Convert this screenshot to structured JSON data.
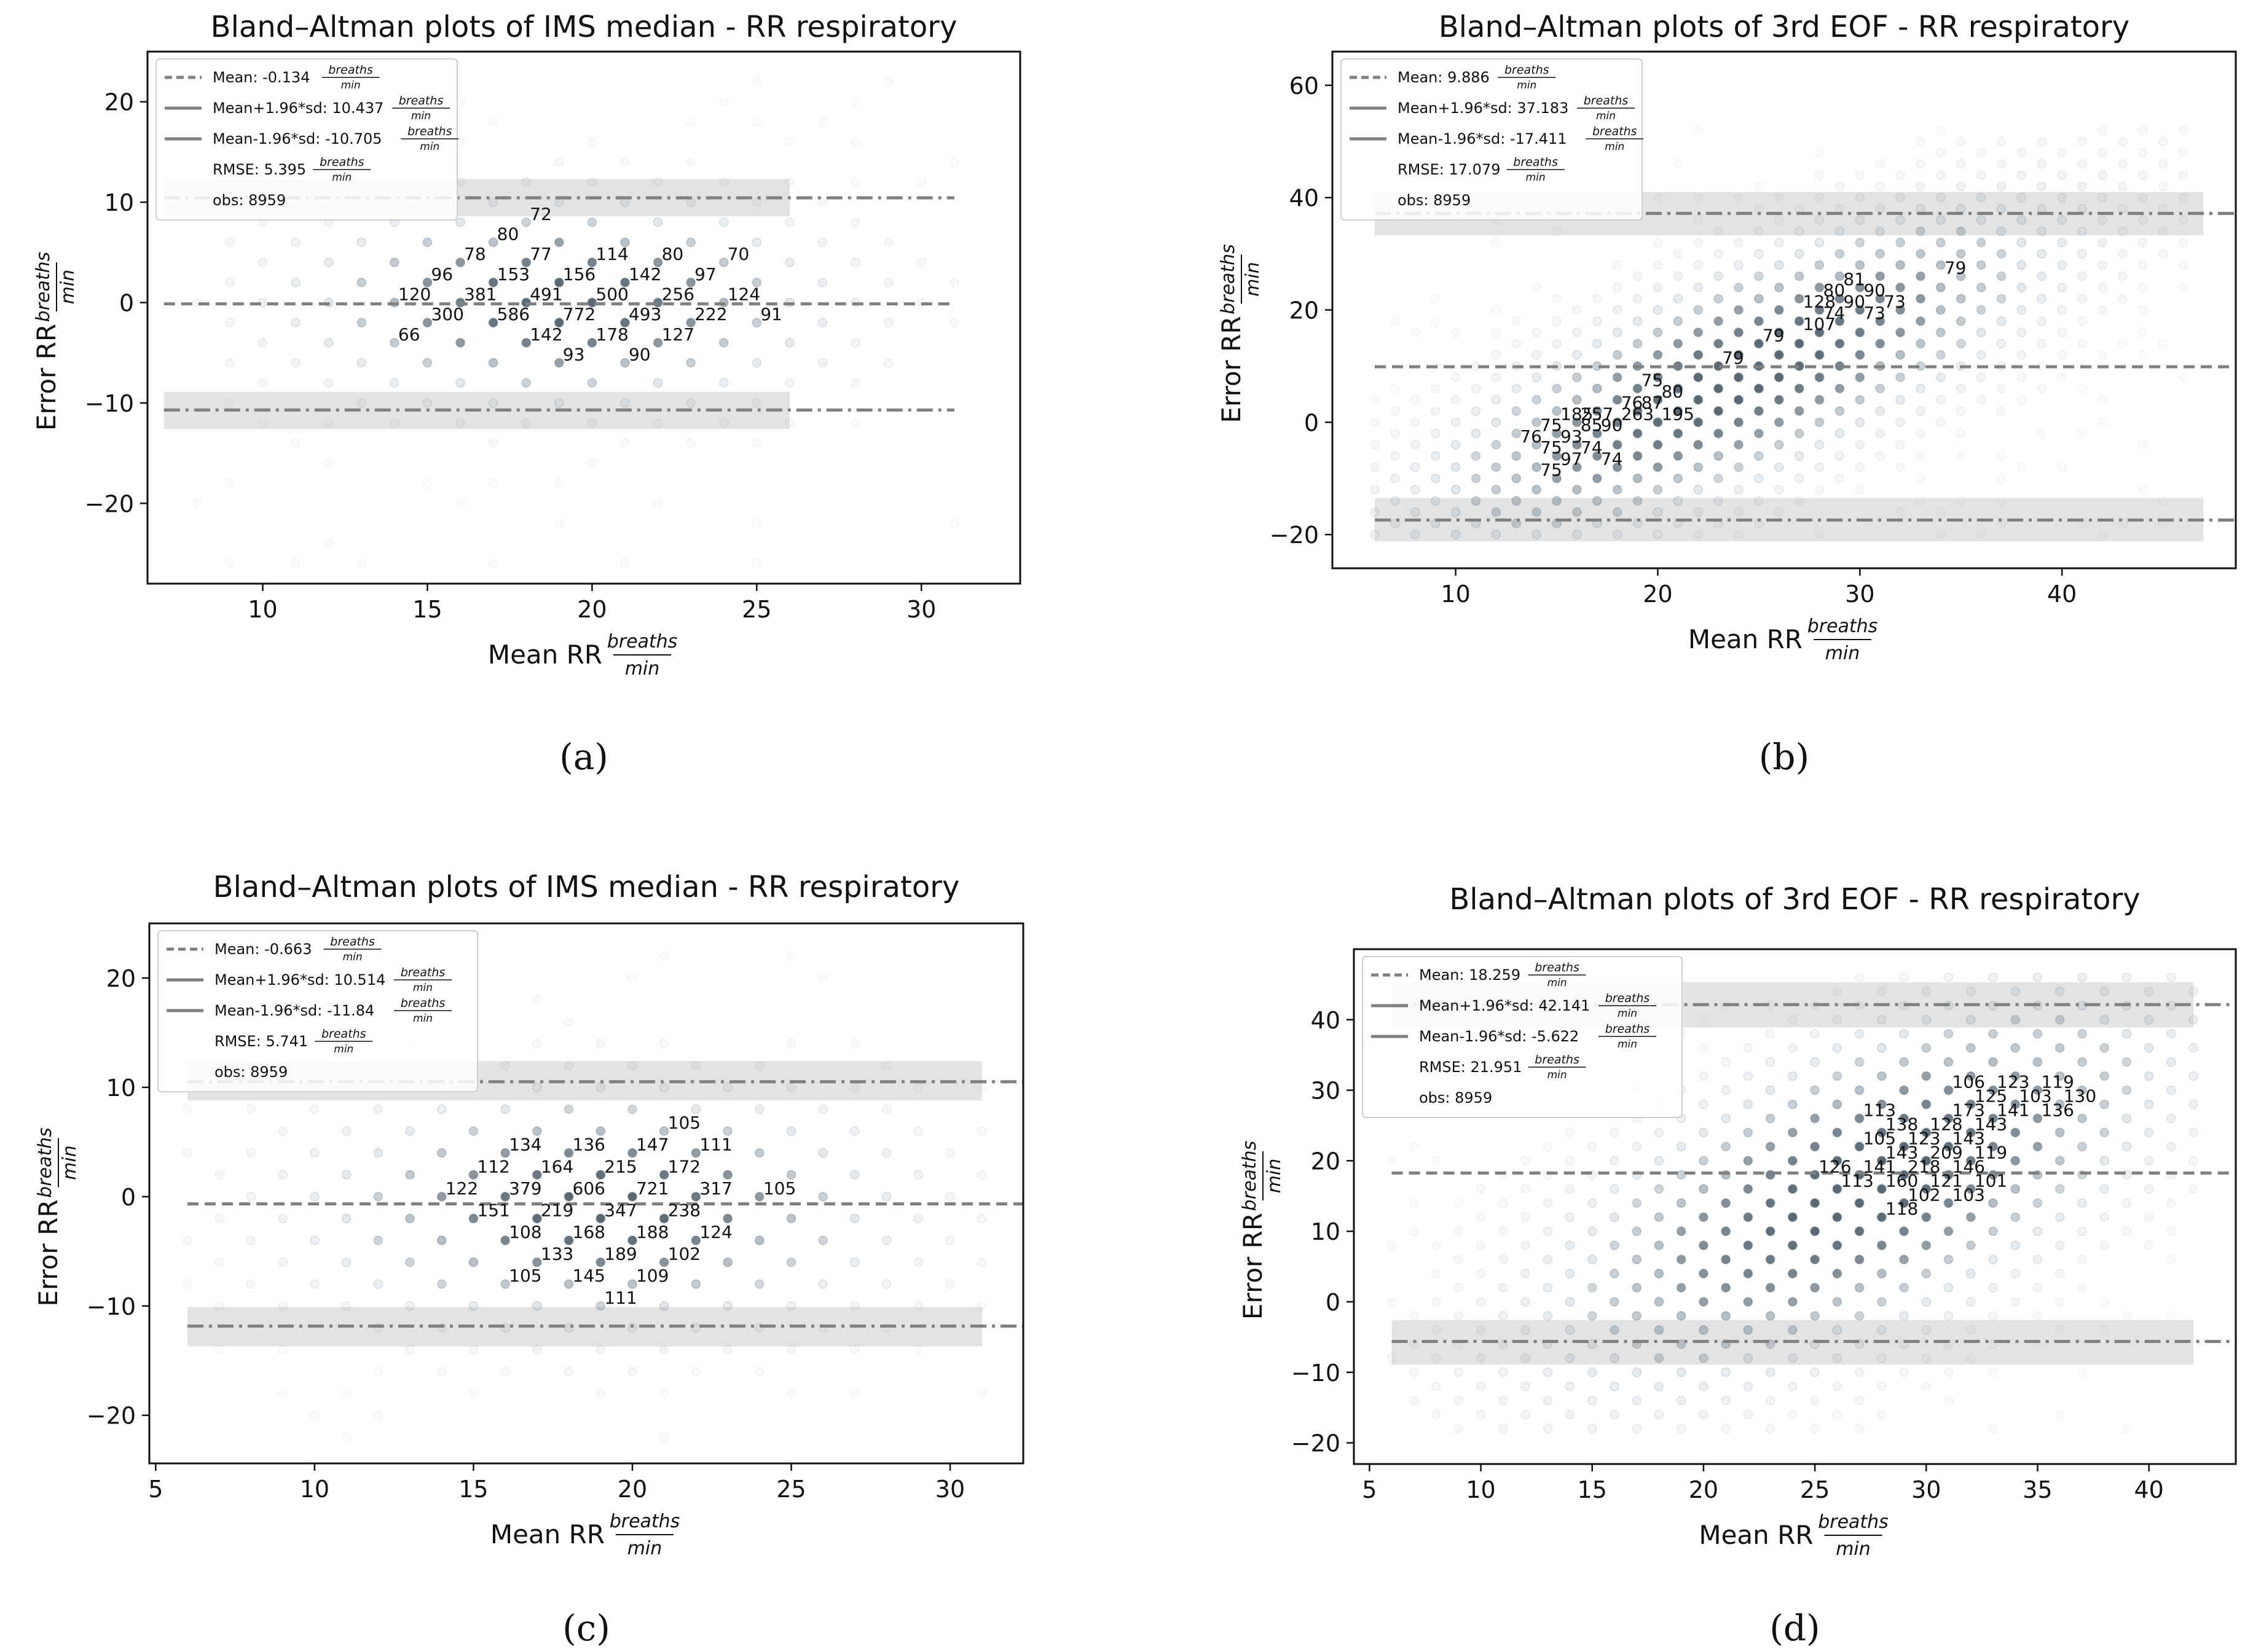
{
  "figure": {
    "panel_labels": [
      "(a)",
      "(b)",
      "(c)",
      "(d)"
    ],
    "xlabel_main": "Mean RR",
    "ylabel_main": "Error RR",
    "unit_num": "breaths",
    "unit_den": "min"
  },
  "chart_data": [
    {
      "type": "scatter",
      "title": "Bland–Altman plots of IMS median - RR respiratory",
      "xlabel": "Mean RR breaths/min",
      "ylabel": "Error RR breaths/min",
      "xlim": [
        6.5,
        33
      ],
      "ylim": [
        -28,
        25
      ],
      "xticks": [
        10,
        15,
        20,
        25,
        30
      ],
      "yticks": [
        -20,
        -10,
        0,
        10,
        20
      ],
      "mean": -0.134,
      "upper_loa": 10.437,
      "lower_loa": -10.705,
      "line_xrange": [
        7,
        31
      ],
      "band_xrange": [
        7,
        26
      ],
      "upper_band": [
        8.6,
        12.3
      ],
      "lower_band": [
        -8.9,
        -12.6
      ],
      "legend": {
        "mean": "Mean: -0.134",
        "upper": "Mean+1.96*sd: 10.437",
        "lower": "Mean-1.96*sd: -10.705",
        "rmse": "RMSE: 5.395",
        "obs": "obs: 8959"
      },
      "point_range": {
        "x": [
          8,
          31
        ],
        "y": [
          -26,
          22
        ]
      },
      "point_center": [
        19,
        0
      ],
      "point_spread": [
        4.5,
        5.5
      ],
      "point_slope": 0,
      "annotations": [
        {
          "x": 18,
          "y": 8,
          "label": "72"
        },
        {
          "x": 17,
          "y": 6,
          "label": "80"
        },
        {
          "x": 16,
          "y": 4,
          "label": "78"
        },
        {
          "x": 18,
          "y": 4,
          "label": "77"
        },
        {
          "x": 20,
          "y": 4,
          "label": "114"
        },
        {
          "x": 22,
          "y": 4,
          "label": "80"
        },
        {
          "x": 24,
          "y": 4,
          "label": "70"
        },
        {
          "x": 15,
          "y": 2,
          "label": "96"
        },
        {
          "x": 17,
          "y": 2,
          "label": "153"
        },
        {
          "x": 19,
          "y": 2,
          "label": "156"
        },
        {
          "x": 21,
          "y": 2,
          "label": "142"
        },
        {
          "x": 23,
          "y": 2,
          "label": "97"
        },
        {
          "x": 14,
          "y": 0,
          "label": "120"
        },
        {
          "x": 16,
          "y": 0,
          "label": "381"
        },
        {
          "x": 18,
          "y": 0,
          "label": "491"
        },
        {
          "x": 20,
          "y": 0,
          "label": "500"
        },
        {
          "x": 22,
          "y": 0,
          "label": "256"
        },
        {
          "x": 24,
          "y": 0,
          "label": "124"
        },
        {
          "x": 15,
          "y": -2,
          "label": "300"
        },
        {
          "x": 17,
          "y": -2,
          "label": "586"
        },
        {
          "x": 19,
          "y": -2,
          "label": "772"
        },
        {
          "x": 21,
          "y": -2,
          "label": "493"
        },
        {
          "x": 23,
          "y": -2,
          "label": "222"
        },
        {
          "x": 25,
          "y": -2,
          "label": "91"
        },
        {
          "x": 14,
          "y": -4,
          "label": "66"
        },
        {
          "x": 18,
          "y": -4,
          "label": "142"
        },
        {
          "x": 20,
          "y": -4,
          "label": "178"
        },
        {
          "x": 22,
          "y": -4,
          "label": "127"
        },
        {
          "x": 21,
          "y": -6,
          "label": "90"
        },
        {
          "x": 19,
          "y": -6,
          "label": "93"
        }
      ]
    },
    {
      "type": "scatter",
      "title": "Bland–Altman plots of 3rd EOF - RR respiratory",
      "xlabel": "Mean RR breaths/min",
      "ylabel": "Error RR breaths/min",
      "xlim": [
        3.9,
        48.6
      ],
      "ylim": [
        -26,
        66
      ],
      "xticks": [
        10,
        20,
        30,
        40
      ],
      "yticks": [
        -20,
        0,
        20,
        40,
        60
      ],
      "mean": 9.886,
      "upper_loa": 37.183,
      "lower_loa": -17.411,
      "line_xrange": [
        6,
        48.6
      ],
      "band_xrange": [
        6,
        47
      ],
      "upper_band": [
        33.3,
        41.0
      ],
      "lower_band": [
        -13.5,
        -21.2
      ],
      "legend": {
        "mean": "Mean: 9.886",
        "upper": "Mean+1.96*sd: 37.183",
        "lower": "Mean-1.96*sd: -17.411",
        "rmse": "RMSE: 17.079",
        "obs": "obs: 8959"
      },
      "point_range": {
        "x": [
          6,
          46
        ],
        "y": [
          -20,
          52
        ]
      },
      "point_center": [
        24,
        8
      ],
      "point_spread": [
        9,
        11
      ],
      "point_slope": 1.5,
      "annotations": [
        {
          "x": 34,
          "y": 26,
          "label": "79"
        },
        {
          "x": 29,
          "y": 24,
          "label": "81"
        },
        {
          "x": 28,
          "y": 22,
          "label": "80"
        },
        {
          "x": 30,
          "y": 22,
          "label": "90"
        },
        {
          "x": 27,
          "y": 20,
          "label": "128"
        },
        {
          "x": 29,
          "y": 20,
          "label": "90"
        },
        {
          "x": 31,
          "y": 20,
          "label": "73"
        },
        {
          "x": 28,
          "y": 18,
          "label": "74"
        },
        {
          "x": 30,
          "y": 18,
          "label": "73"
        },
        {
          "x": 27,
          "y": 16,
          "label": "107"
        },
        {
          "x": 25,
          "y": 14,
          "label": "79"
        },
        {
          "x": 23,
          "y": 10,
          "label": "79"
        },
        {
          "x": 19,
          "y": 6,
          "label": "75"
        },
        {
          "x": 20,
          "y": 4,
          "label": "80"
        },
        {
          "x": 18,
          "y": 2,
          "label": "76"
        },
        {
          "x": 19,
          "y": 2,
          "label": "87"
        },
        {
          "x": 15,
          "y": 0,
          "label": "185"
        },
        {
          "x": 16,
          "y": 0,
          "label": "257"
        },
        {
          "x": 18,
          "y": 0,
          "label": "263"
        },
        {
          "x": 20,
          "y": 0,
          "label": "195"
        },
        {
          "x": 14,
          "y": -2,
          "label": "75"
        },
        {
          "x": 16,
          "y": -2,
          "label": "85"
        },
        {
          "x": 17,
          "y": -2,
          "label": "90"
        },
        {
          "x": 13,
          "y": -4,
          "label": "76"
        },
        {
          "x": 15,
          "y": -4,
          "label": "93"
        },
        {
          "x": 14,
          "y": -6,
          "label": "75"
        },
        {
          "x": 16,
          "y": -6,
          "label": "74"
        },
        {
          "x": 15,
          "y": -8,
          "label": "97"
        },
        {
          "x": 17,
          "y": -8,
          "label": "74"
        },
        {
          "x": 14,
          "y": -10,
          "label": "75"
        }
      ]
    },
    {
      "type": "scatter",
      "title": "Bland–Altman plots of IMS median - RR respiratory",
      "xlabel": "Mean RR breaths/min",
      "ylabel": "Error RR breaths/min",
      "xlim": [
        4.8,
        32.3
      ],
      "ylim": [
        -24.4,
        25
      ],
      "xticks": [
        5,
        10,
        15,
        20,
        25,
        30
      ],
      "yticks": [
        -20,
        -10,
        0,
        10,
        20
      ],
      "mean": -0.663,
      "upper_loa": 10.514,
      "lower_loa": -11.84,
      "line_xrange": [
        6,
        32.3
      ],
      "band_xrange": [
        6,
        31
      ],
      "upper_band": [
        8.8,
        12.4
      ],
      "lower_band": [
        -10.1,
        -13.7
      ],
      "legend": {
        "mean": "Mean: -0.663",
        "upper": "Mean+1.96*sd: 10.514",
        "lower": "Mean-1.96*sd: -11.84",
        "rmse": "RMSE: 5.741",
        "obs": "obs: 8959"
      },
      "point_range": {
        "x": [
          6,
          31
        ],
        "y": [
          -22,
          22
        ]
      },
      "point_center": [
        19,
        -1
      ],
      "point_spread": [
        5,
        6
      ],
      "point_slope": 0,
      "annotations": [
        {
          "x": 21,
          "y": 6,
          "label": "105"
        },
        {
          "x": 16,
          "y": 4,
          "label": "134"
        },
        {
          "x": 18,
          "y": 4,
          "label": "136"
        },
        {
          "x": 20,
          "y": 4,
          "label": "147"
        },
        {
          "x": 22,
          "y": 4,
          "label": "111"
        },
        {
          "x": 15,
          "y": 2,
          "label": "112"
        },
        {
          "x": 17,
          "y": 2,
          "label": "164"
        },
        {
          "x": 19,
          "y": 2,
          "label": "215"
        },
        {
          "x": 21,
          "y": 2,
          "label": "172"
        },
        {
          "x": 14,
          "y": 0,
          "label": "122"
        },
        {
          "x": 16,
          "y": 0,
          "label": "379"
        },
        {
          "x": 18,
          "y": 0,
          "label": "606"
        },
        {
          "x": 20,
          "y": 0,
          "label": "721"
        },
        {
          "x": 22,
          "y": 0,
          "label": "317"
        },
        {
          "x": 24,
          "y": 0,
          "label": "105"
        },
        {
          "x": 15,
          "y": -2,
          "label": "151"
        },
        {
          "x": 17,
          "y": -2,
          "label": "219"
        },
        {
          "x": 19,
          "y": -2,
          "label": "347"
        },
        {
          "x": 21,
          "y": -2,
          "label": "238"
        },
        {
          "x": 16,
          "y": -4,
          "label": "108"
        },
        {
          "x": 18,
          "y": -4,
          "label": "168"
        },
        {
          "x": 20,
          "y": -4,
          "label": "188"
        },
        {
          "x": 22,
          "y": -4,
          "label": "124"
        },
        {
          "x": 17,
          "y": -6,
          "label": "133"
        },
        {
          "x": 19,
          "y": -6,
          "label": "189"
        },
        {
          "x": 21,
          "y": -6,
          "label": "102"
        },
        {
          "x": 16,
          "y": -8,
          "label": "105"
        },
        {
          "x": 18,
          "y": -8,
          "label": "145"
        },
        {
          "x": 20,
          "y": -8,
          "label": "109"
        },
        {
          "x": 19,
          "y": -10,
          "label": "111"
        }
      ]
    },
    {
      "type": "scatter",
      "title": "Bland–Altman plots of 3rd EOF - RR respiratory",
      "xlabel": "Mean RR breaths/min",
      "ylabel": "Error RR breaths/min",
      "xlim": [
        4.3,
        43.9
      ],
      "ylim": [
        -23,
        50
      ],
      "xticks": [
        5,
        10,
        15,
        20,
        25,
        30,
        35,
        40
      ],
      "yticks": [
        -20,
        -10,
        0,
        10,
        20,
        30,
        40
      ],
      "mean": 18.259,
      "upper_loa": 42.141,
      "lower_loa": -5.622,
      "line_xrange": [
        6,
        43.9
      ],
      "band_xrange": [
        6,
        42
      ],
      "upper_band": [
        38.9,
        45.3
      ],
      "lower_band": [
        -2.6,
        -8.9
      ],
      "legend": {
        "mean": "Mean: 18.259",
        "upper": "Mean+1.96*sd: 42.141",
        "lower": "Mean-1.96*sd: -5.622",
        "rmse": "RMSE: 21.951",
        "obs": "obs: 8959"
      },
      "point_range": {
        "x": [
          6,
          42
        ],
        "y": [
          -18,
          46
        ]
      },
      "point_center": [
        27,
        16
      ],
      "point_spread": [
        8,
        12
      ],
      "point_slope": 1.3,
      "annotations": [
        {
          "x": 31,
          "y": 30,
          "label": "106"
        },
        {
          "x": 33,
          "y": 30,
          "label": "123"
        },
        {
          "x": 35,
          "y": 30,
          "label": "119"
        },
        {
          "x": 32,
          "y": 28,
          "label": "125"
        },
        {
          "x": 34,
          "y": 28,
          "label": "103"
        },
        {
          "x": 36,
          "y": 28,
          "label": "130"
        },
        {
          "x": 31,
          "y": 26,
          "label": "173"
        },
        {
          "x": 33,
          "y": 26,
          "label": "141"
        },
        {
          "x": 35,
          "y": 26,
          "label": "136"
        },
        {
          "x": 27,
          "y": 26,
          "label": "113"
        },
        {
          "x": 28,
          "y": 24,
          "label": "138"
        },
        {
          "x": 30,
          "y": 24,
          "label": "128"
        },
        {
          "x": 32,
          "y": 24,
          "label": "143"
        },
        {
          "x": 27,
          "y": 22,
          "label": "105"
        },
        {
          "x": 29,
          "y": 22,
          "label": "123"
        },
        {
          "x": 31,
          "y": 22,
          "label": "143"
        },
        {
          "x": 28,
          "y": 20,
          "label": "143"
        },
        {
          "x": 30,
          "y": 20,
          "label": "209"
        },
        {
          "x": 32,
          "y": 20,
          "label": "119"
        },
        {
          "x": 25,
          "y": 18,
          "label": "126"
        },
        {
          "x": 27,
          "y": 18,
          "label": "141"
        },
        {
          "x": 29,
          "y": 18,
          "label": "218"
        },
        {
          "x": 31,
          "y": 18,
          "label": "146"
        },
        {
          "x": 26,
          "y": 16,
          "label": "113"
        },
        {
          "x": 28,
          "y": 16,
          "label": "160"
        },
        {
          "x": 30,
          "y": 16,
          "label": "121"
        },
        {
          "x": 32,
          "y": 16,
          "label": "101"
        },
        {
          "x": 29,
          "y": 14,
          "label": "102"
        },
        {
          "x": 31,
          "y": 14,
          "label": "103"
        },
        {
          "x": 28,
          "y": 12,
          "label": "118"
        }
      ]
    }
  ]
}
